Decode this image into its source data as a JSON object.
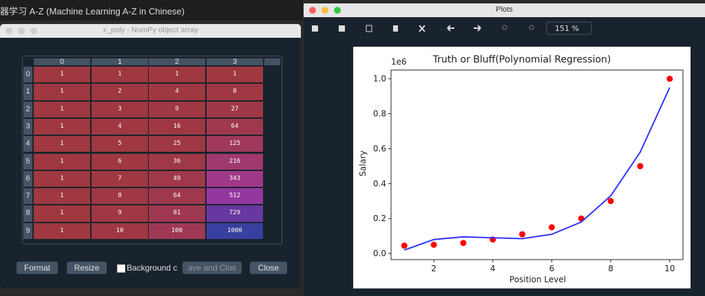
{
  "top_bar": {
    "title": "器学习 A-Z (Machine Learning A-Z in Chinese)"
  },
  "array_window": {
    "title": "x_poly - NumPy object array",
    "columns": [
      "0",
      "1",
      "2",
      "3"
    ],
    "row_labels": [
      "0",
      "1",
      "2",
      "3",
      "4",
      "5",
      "6",
      "7",
      "8",
      "9"
    ],
    "rows": [
      [
        1,
        1,
        1,
        1
      ],
      [
        1,
        2,
        4,
        8
      ],
      [
        1,
        3,
        9,
        27
      ],
      [
        1,
        4,
        16,
        64
      ],
      [
        1,
        5,
        25,
        125
      ],
      [
        1,
        6,
        36,
        216
      ],
      [
        1,
        7,
        49,
        343
      ],
      [
        1,
        8,
        64,
        512
      ],
      [
        1,
        9,
        81,
        729
      ],
      [
        1,
        10,
        100,
        1000
      ]
    ],
    "buttons": [
      "Format",
      "Resize"
    ],
    "checkbox": "Background c",
    "buttons_right": [
      "ave and Clos",
      "Close"
    ]
  },
  "plots_window": {
    "title": "Plots",
    "zoom": "151 %",
    "chart_data": {
      "type": "scatter",
      "title": "Truth or Bluff(Polynomial Regression)",
      "x_label": "Position Level",
      "y_label": "Salary",
      "y_offset_label": "1e6",
      "x": [
        1,
        2,
        3,
        4,
        5,
        6,
        7,
        8,
        9,
        10
      ],
      "series": [
        {
          "color": "#ff0000",
          "style": "markers",
          "values": [
            0.045,
            0.05,
            0.06,
            0.08,
            0.11,
            0.15,
            0.2,
            0.3,
            0.5,
            1.0
          ]
        },
        {
          "color": "#3333ff",
          "style": "line",
          "values": [
            0.02,
            0.08,
            0.095,
            0.09,
            0.085,
            0.11,
            0.18,
            0.33,
            0.58,
            0.95
          ]
        }
      ],
      "xlim": [
        0.55,
        10.45
      ],
      "ylim": [
        -0.035,
        1.05
      ],
      "xticks": [
        2,
        4,
        6,
        8,
        10
      ],
      "yticks": [
        {
          "value": 0,
          "label": "0.0"
        },
        0.2,
        0.4,
        0.6,
        0.8,
        {
          "value": 1,
          "label": "1.0"
        }
      ]
    }
  }
}
